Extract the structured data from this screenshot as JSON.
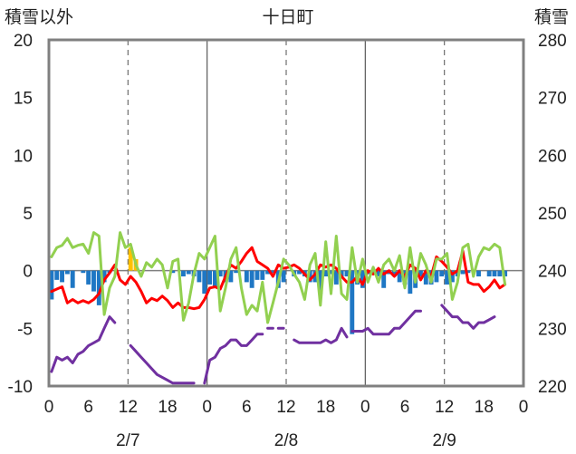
{
  "chart_data": {
    "type": "bar+line",
    "title": "十日町",
    "left_axis": {
      "label": "積雪以外",
      "min": -10,
      "max": 20,
      "ticks": [
        20,
        15,
        10,
        5,
        0,
        -5,
        -10
      ]
    },
    "right_axis": {
      "label": "積雪",
      "min": 220,
      "max": 280,
      "ticks": [
        280,
        270,
        260,
        250,
        240,
        230,
        220
      ]
    },
    "x_axis": {
      "hour_ticks": [
        "0",
        "6",
        "12",
        "18",
        "0",
        "6",
        "12",
        "18",
        "0",
        "6",
        "12",
        "18",
        "0"
      ],
      "date_labels": [
        "2/7",
        "2/8",
        "2/9"
      ]
    },
    "colors": {
      "frame": "#808080",
      "grid": "#6e6e6e",
      "day_line": "#5a5a5a",
      "zero_line": "#7f7f7f",
      "blue_bar": "#1f77c4",
      "orange_bar": "#ffc000",
      "red_line": "#ff0000",
      "green_line": "#92d050",
      "purple_line": "#7030a0"
    },
    "series": [
      {
        "kind": "bar",
        "axis": "left",
        "color_key": "blue_bar",
        "values": [
          -2.5,
          -0.8,
          -1,
          -0.3,
          -1.5,
          0,
          -0.2,
          -1.2,
          -1.8,
          -3,
          -1,
          -0.2,
          0,
          0,
          0,
          0,
          0,
          0,
          0,
          0,
          0,
          0,
          0,
          -0.2,
          0,
          -0.5,
          -0.3,
          -0.5,
          -1,
          -2,
          -1.2,
          -1.5,
          -0.5,
          -1,
          -1,
          -0.2,
          0,
          -1,
          -1.5,
          -0.8,
          -0.8,
          -0.3,
          -0.2,
          -1.5,
          -1,
          0,
          -0.5,
          -0.3,
          -0.5,
          -1,
          -1,
          -2,
          -0.5,
          -0.3,
          -1.2,
          -0.5,
          -0.5,
          -5.5,
          -1.2,
          -1.5,
          -0.3,
          -0.3,
          -0.5,
          -1.5,
          -0.3,
          -0.5,
          -1,
          -1.2,
          -2,
          -1.5,
          -0.5,
          -1.2,
          -1.2,
          -1,
          -0.5,
          -1.2,
          -1,
          -0.5,
          -0.3,
          -0.2,
          0,
          -0.5,
          0,
          -0.5,
          -0.5,
          -0.5,
          -0.5
        ]
      },
      {
        "kind": "bar",
        "axis": "left",
        "color_key": "orange_bar",
        "values": [
          0,
          0,
          0,
          0,
          0,
          0,
          0,
          0,
          0,
          0,
          0,
          0,
          0,
          0,
          0,
          2,
          1,
          0,
          0,
          0,
          0,
          0,
          0,
          0,
          0,
          0,
          0,
          0,
          0,
          0,
          0,
          0,
          0,
          0,
          0,
          0,
          0,
          0,
          0,
          0,
          0,
          0,
          0,
          0,
          0,
          0,
          0,
          0,
          0,
          0,
          0,
          0,
          0,
          0,
          0,
          0,
          0,
          0,
          0,
          0,
          0,
          0,
          0,
          0,
          0,
          0,
          0,
          0,
          0,
          0,
          0,
          0,
          0,
          0,
          0,
          0,
          0,
          0,
          0,
          0,
          0,
          0,
          0,
          0,
          0,
          0,
          0,
          0,
          0
        ]
      },
      {
        "kind": "line",
        "axis": "left",
        "color_key": "red_line",
        "values": [
          -1.8,
          -1.6,
          -1.4,
          -2.8,
          -2.5,
          -2.8,
          -2.6,
          -2.8,
          -2.5,
          -2.0,
          -0.8,
          -0.2,
          0.5,
          -0.8,
          -1.2,
          -0.5,
          -1.0,
          -1.8,
          -2.8,
          -2.4,
          -2.6,
          -2.2,
          -2.6,
          -3.2,
          -2.8,
          -3.2,
          -3.2,
          -3.3,
          -3.2,
          -2.5,
          -1.5,
          -1.4,
          -1.6,
          -0.5,
          0.5,
          0.2,
          0.8,
          1.5,
          2.0,
          0.8,
          0.5,
          0.2,
          -0.5,
          0.5,
          0.2,
          0.3,
          0.5,
          0.2,
          -0.3,
          -0.8,
          -0.3,
          0.5,
          0.3,
          0.5,
          0.2,
          -0.5,
          -1.0,
          -1.0,
          -0.5,
          -1.2,
          0.0,
          -0.3,
          0.2,
          -0.3,
          0.0,
          -0.5,
          0.0,
          -0.5,
          0.5,
          0.2,
          -0.8,
          0.0,
          -0.5,
          1.2,
          0.8,
          0.3,
          -0.3,
          0.0,
          1.7,
          -1.0,
          -1.2,
          -1.2,
          -1.8,
          -1.4,
          -0.8,
          -1.5,
          -1.2
        ]
      },
      {
        "kind": "line",
        "axis": "left",
        "color_key": "green_line",
        "values": [
          1.2,
          2.0,
          2.2,
          2.8,
          2.0,
          2.2,
          2.3,
          1.5,
          3.3,
          3.0,
          -3.8,
          -1.5,
          -0.5,
          3.3,
          2.0,
          2.3,
          0.5,
          -0.5,
          0.7,
          0.3,
          1.0,
          0.5,
          -1.5,
          0.8,
          1.0,
          -4.3,
          -2.8,
          -0.3,
          1.5,
          1.0,
          2.0,
          3.0,
          -3.5,
          -1.5,
          1.0,
          2.0,
          -1.5,
          -3.8,
          -3.0,
          -3.5,
          -1.0,
          -4.5,
          -2.8,
          -1.0,
          1.0,
          0.5,
          -0.3,
          -1.0,
          -2.5,
          0.5,
          1.5,
          -3.0,
          2.5,
          -2.0,
          3.0,
          -2.0,
          -2.5,
          2.0,
          -1.0,
          1.0,
          -1.0,
          0.3,
          -1.0,
          0.5,
          1.0,
          0.0,
          1.3,
          -1.5,
          2.0,
          -1.0,
          1.5,
          0.5,
          -1.0,
          1.0,
          1.0,
          1.5,
          -2.5,
          -1.0,
          2.0,
          2.3,
          -0.5,
          1.2,
          2.0,
          1.8,
          2.3,
          2.0,
          -1.2
        ]
      },
      {
        "kind": "line",
        "axis": "right",
        "color_key": "purple_line",
        "segments": [
          [
            [
              0,
              222.5
            ],
            [
              1,
              225
            ],
            [
              2,
              224.5
            ],
            [
              3,
              225
            ],
            [
              4,
              224
            ],
            [
              5,
              225.5
            ],
            [
              6,
              226
            ],
            [
              7,
              227
            ],
            [
              8,
              227.5
            ],
            [
              9,
              228
            ],
            [
              10,
              230
            ],
            [
              11,
              232
            ],
            [
              12,
              231
            ]
          ],
          [
            [
              15,
              227
            ],
            [
              16,
              226
            ],
            [
              17,
              225
            ],
            [
              18,
              224
            ],
            [
              19,
              223
            ],
            [
              20,
              222
            ],
            [
              21,
              221.5
            ],
            [
              22,
              221
            ],
            [
              23,
              220.5
            ],
            [
              24,
              220.5
            ],
            [
              25,
              220.5
            ],
            [
              26,
              220.5
            ],
            [
              27,
              220.5
            ]
          ],
          [
            [
              29,
              220.5
            ],
            [
              30,
              224.5
            ],
            [
              31,
              225
            ],
            [
              32,
              226.5
            ],
            [
              33,
              227
            ],
            [
              34,
              228
            ],
            [
              35,
              228
            ],
            [
              36,
              227
            ],
            [
              37,
              227
            ],
            [
              38,
              228
            ],
            [
              39,
              229
            ],
            [
              40,
              229
            ]
          ],
          [
            [
              41,
              230
            ],
            [
              42,
              230
            ]
          ],
          [
            [
              43,
              230
            ],
            [
              44,
              230
            ]
          ],
          [
            [
              46,
              228
            ],
            [
              47,
              227.5
            ],
            [
              48,
              227.5
            ],
            [
              49,
              227.5
            ],
            [
              50,
              227.5
            ],
            [
              51,
              227.5
            ],
            [
              52,
              228
            ],
            [
              53,
              227.5
            ],
            [
              54,
              228
            ],
            [
              55,
              230
            ],
            [
              56,
              228.5
            ]
          ],
          [
            [
              57,
              229.5
            ],
            [
              58,
              229.5
            ],
            [
              59,
              229.5
            ],
            [
              60,
              230
            ],
            [
              61,
              229
            ],
            [
              62,
              229
            ],
            [
              63,
              229
            ],
            [
              64,
              229
            ],
            [
              65,
              230
            ],
            [
              66,
              230
            ],
            [
              67,
              231
            ],
            [
              68,
              232
            ],
            [
              69,
              233
            ],
            [
              70,
              233
            ]
          ],
          [
            [
              74,
              234
            ],
            [
              75,
              233
            ],
            [
              76,
              232
            ],
            [
              77,
              232
            ],
            [
              78,
              231
            ],
            [
              79,
              231
            ],
            [
              80,
              230
            ],
            [
              81,
              231
            ],
            [
              82,
              231
            ],
            [
              83,
              231.5
            ],
            [
              84,
              232
            ]
          ]
        ]
      }
    ]
  }
}
